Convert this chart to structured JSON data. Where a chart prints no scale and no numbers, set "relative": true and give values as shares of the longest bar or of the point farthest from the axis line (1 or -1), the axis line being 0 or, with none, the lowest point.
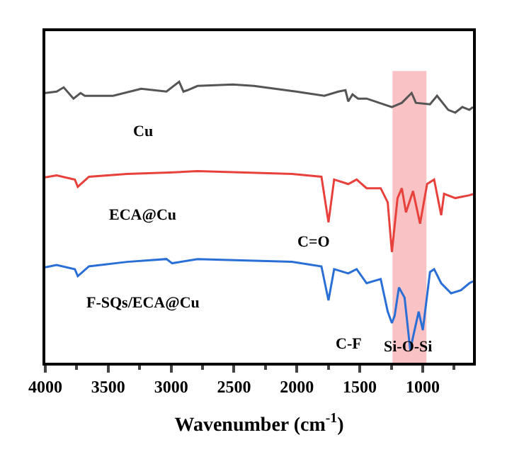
{
  "chart_data": {
    "type": "line",
    "relative": true,
    "xlabel": "Wavenumber (cm$^{-1}$)",
    "xlim": [
      4000,
      600
    ],
    "xticks": [
      4000,
      3500,
      3000,
      2500,
      2000,
      1500,
      1000
    ],
    "legend": false,
    "grid": false,
    "series": [
      {
        "name": "Cu",
        "color": "#555555",
        "x": [
          4000,
          3910,
          3854,
          3776,
          3720,
          3686,
          3462,
          3238,
          3037,
          2936,
          2902,
          2869,
          2790,
          2510,
          2342,
          2006,
          1782,
          1670,
          1614,
          1592,
          1558,
          1514,
          1446,
          1245,
          1166,
          1088,
          1054,
          942,
          886,
          797,
          741,
          685,
          629,
          600
        ],
        "values": [
          0.96,
          0.965,
          0.98,
          0.94,
          0.96,
          0.95,
          0.95,
          0.975,
          0.965,
          1.0,
          0.965,
          0.97,
          0.985,
          0.99,
          0.985,
          0.965,
          0.95,
          0.965,
          0.97,
          0.93,
          0.955,
          0.94,
          0.94,
          0.91,
          0.925,
          0.96,
          0.925,
          0.92,
          0.95,
          0.9,
          0.89,
          0.91,
          0.9,
          0.91
        ]
      },
      {
        "name": "ECA@Cu",
        "color": "#e8413c",
        "x": [
          4000,
          3910,
          3765,
          3742,
          3653,
          3350,
          3014,
          2790,
          2040,
          1805,
          1749,
          1704,
          1592,
          1525,
          1446,
          1334,
          1278,
          1245,
          1200,
          1166,
          1133,
          1077,
          1021,
          965,
          909,
          853,
          830,
          741,
          629,
          600
        ],
        "values": [
          0.66,
          0.667,
          0.652,
          0.626,
          0.662,
          0.672,
          0.677,
          0.682,
          0.672,
          0.662,
          0.5,
          0.652,
          0.636,
          0.652,
          0.621,
          0.621,
          0.571,
          0.394,
          0.586,
          0.621,
          0.535,
          0.611,
          0.495,
          0.636,
          0.652,
          0.525,
          0.601,
          0.586,
          0.596,
          0.6
        ]
      },
      {
        "name": "F-SQs/ECA@Cu",
        "color": "#2a6fd6",
        "x": [
          4000,
          3910,
          3765,
          3742,
          3653,
          3350,
          3037,
          2992,
          2790,
          2040,
          1805,
          1749,
          1704,
          1592,
          1525,
          1446,
          1334,
          1278,
          1245,
          1223,
          1189,
          1144,
          1099,
          1077,
          1032,
          999,
          942,
          909,
          853,
          774,
          696,
          629,
          600
        ],
        "values": [
          0.34,
          0.348,
          0.333,
          0.308,
          0.343,
          0.359,
          0.369,
          0.354,
          0.369,
          0.359,
          0.343,
          0.222,
          0.333,
          0.318,
          0.333,
          0.283,
          0.298,
          0.182,
          0.141,
          0.167,
          0.268,
          0.232,
          0.045,
          0.091,
          0.182,
          0.116,
          0.323,
          0.333,
          0.283,
          0.247,
          0.258,
          0.283,
          0.29
        ]
      }
    ],
    "bands": [
      {
        "axis": "x",
        "from": 1240,
        "to": 970,
        "color": "#f7b3b5"
      }
    ],
    "annotations": [
      "C=O",
      "C-F",
      "Si-O-Si"
    ]
  }
}
